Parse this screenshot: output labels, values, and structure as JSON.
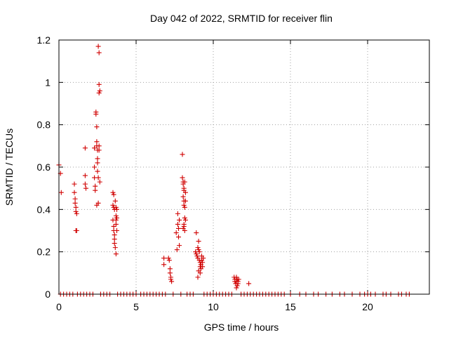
{
  "chart_data": {
    "type": "scatter",
    "title": "Day 042 of 2022, SRMTID for receiver flin",
    "xlabel": "GPS time / hours",
    "ylabel": "SRMTID / TECUs",
    "xlim": [
      0,
      24
    ],
    "ylim": [
      0,
      1.2
    ],
    "x_ticks": [
      0,
      5,
      10,
      15,
      20
    ],
    "x_tick_labels": [
      "0",
      "5",
      "10",
      "15",
      "20"
    ],
    "y_ticks": [
      0,
      0.2,
      0.4,
      0.6,
      0.8,
      1.0,
      1.2
    ],
    "y_tick_labels": [
      "0",
      "0.2",
      "0.4",
      "0.6",
      "0.8",
      "1",
      "1.2"
    ],
    "grid": true,
    "marker": "+",
    "color": "#d00000",
    "series": [
      {
        "name": "SRMTID",
        "points": [
          [
            0.0,
            0.61
          ],
          [
            0.1,
            0.57
          ],
          [
            0.15,
            0.48
          ],
          [
            1.0,
            0.52
          ],
          [
            1.0,
            0.48
          ],
          [
            1.05,
            0.45
          ],
          [
            1.05,
            0.43
          ],
          [
            1.1,
            0.41
          ],
          [
            1.1,
            0.39
          ],
          [
            1.15,
            0.38
          ],
          [
            1.1,
            0.3
          ],
          [
            1.15,
            0.3
          ],
          [
            1.7,
            0.69
          ],
          [
            1.7,
            0.56
          ],
          [
            1.7,
            0.52
          ],
          [
            1.75,
            0.5
          ],
          [
            2.3,
            0.69
          ],
          [
            2.3,
            0.6
          ],
          [
            2.3,
            0.55
          ],
          [
            2.35,
            0.51
          ],
          [
            2.35,
            0.49
          ],
          [
            2.4,
            0.86
          ],
          [
            2.4,
            0.85
          ],
          [
            2.45,
            0.79
          ],
          [
            2.45,
            0.72
          ],
          [
            2.45,
            0.7
          ],
          [
            2.5,
            0.68
          ],
          [
            2.5,
            0.64
          ],
          [
            2.5,
            0.62
          ],
          [
            2.5,
            0.58
          ],
          [
            2.55,
            0.55
          ],
          [
            2.55,
            0.43
          ],
          [
            2.45,
            0.42
          ],
          [
            2.55,
            1.17
          ],
          [
            2.6,
            1.14
          ],
          [
            2.6,
            0.99
          ],
          [
            2.6,
            0.95
          ],
          [
            2.65,
            0.96
          ],
          [
            2.6,
            0.7
          ],
          [
            2.6,
            0.68
          ],
          [
            2.65,
            0.53
          ],
          [
            3.5,
            0.48
          ],
          [
            3.55,
            0.47
          ],
          [
            3.5,
            0.42
          ],
          [
            3.55,
            0.41
          ],
          [
            3.6,
            0.4
          ],
          [
            3.5,
            0.35
          ],
          [
            3.55,
            0.32
          ],
          [
            3.55,
            0.3
          ],
          [
            3.6,
            0.28
          ],
          [
            3.6,
            0.26
          ],
          [
            3.6,
            0.24
          ],
          [
            3.65,
            0.22
          ],
          [
            3.7,
            0.19
          ],
          [
            3.65,
            0.44
          ],
          [
            3.7,
            0.41
          ],
          [
            3.7,
            0.37
          ],
          [
            3.7,
            0.35
          ],
          [
            3.7,
            0.33
          ],
          [
            3.75,
            0.36
          ],
          [
            3.75,
            0.3
          ],
          [
            3.75,
            0.4
          ],
          [
            6.8,
            0.17
          ],
          [
            6.8,
            0.14
          ],
          [
            7.1,
            0.17
          ],
          [
            7.15,
            0.16
          ],
          [
            7.2,
            0.12
          ],
          [
            7.2,
            0.1
          ],
          [
            7.25,
            0.08
          ],
          [
            7.25,
            0.07
          ],
          [
            7.3,
            0.06
          ],
          [
            7.6,
            0.29
          ],
          [
            7.65,
            0.21
          ],
          [
            7.7,
            0.38
          ],
          [
            7.7,
            0.33
          ],
          [
            7.75,
            0.31
          ],
          [
            7.75,
            0.27
          ],
          [
            7.8,
            0.35
          ],
          [
            7.8,
            0.23
          ],
          [
            8.0,
            0.66
          ],
          [
            8.0,
            0.55
          ],
          [
            8.05,
            0.53
          ],
          [
            8.05,
            0.52
          ],
          [
            8.1,
            0.5
          ],
          [
            8.1,
            0.49
          ],
          [
            8.05,
            0.46
          ],
          [
            8.1,
            0.44
          ],
          [
            8.1,
            0.42
          ],
          [
            8.15,
            0.41
          ],
          [
            8.15,
            0.36
          ],
          [
            8.2,
            0.35
          ],
          [
            8.1,
            0.33
          ],
          [
            8.1,
            0.32
          ],
          [
            8.15,
            0.3
          ],
          [
            8.05,
            0.31
          ],
          [
            8.15,
            0.53
          ],
          [
            8.2,
            0.48
          ],
          [
            8.2,
            0.44
          ],
          [
            8.9,
            0.29
          ],
          [
            8.85,
            0.2
          ],
          [
            8.9,
            0.19
          ],
          [
            8.95,
            0.18
          ],
          [
            9.0,
            0.17
          ],
          [
            9.0,
            0.22
          ],
          [
            9.05,
            0.25
          ],
          [
            9.05,
            0.21
          ],
          [
            9.1,
            0.2
          ],
          [
            9.1,
            0.16
          ],
          [
            9.15,
            0.15
          ],
          [
            9.15,
            0.13
          ],
          [
            9.2,
            0.14
          ],
          [
            9.2,
            0.12
          ],
          [
            9.25,
            0.18
          ],
          [
            9.25,
            0.16
          ],
          [
            9.05,
            0.11
          ],
          [
            9.0,
            0.08
          ],
          [
            9.15,
            0.1
          ],
          [
            9.3,
            0.15
          ],
          [
            9.3,
            0.13
          ],
          [
            9.35,
            0.17
          ],
          [
            11.35,
            0.08
          ],
          [
            11.4,
            0.07
          ],
          [
            11.4,
            0.06
          ],
          [
            11.45,
            0.05
          ],
          [
            11.5,
            0.08
          ],
          [
            11.5,
            0.06
          ],
          [
            11.55,
            0.07
          ],
          [
            11.55,
            0.04
          ],
          [
            11.6,
            0.06
          ],
          [
            11.6,
            0.05
          ],
          [
            11.65,
            0.07
          ],
          [
            11.5,
            0.03
          ],
          [
            12.3,
            0.05
          ],
          [
            0.1,
            0.0
          ],
          [
            0.3,
            0.0
          ],
          [
            0.5,
            0.0
          ],
          [
            0.7,
            0.0
          ],
          [
            0.9,
            0.0
          ],
          [
            1.2,
            0.0
          ],
          [
            1.4,
            0.0
          ],
          [
            1.6,
            0.0
          ],
          [
            1.8,
            0.0
          ],
          [
            2.0,
            0.0
          ],
          [
            2.2,
            0.0
          ],
          [
            2.7,
            0.0
          ],
          [
            2.9,
            0.0
          ],
          [
            3.1,
            0.0
          ],
          [
            3.3,
            0.0
          ],
          [
            3.8,
            0.0
          ],
          [
            4.0,
            0.0
          ],
          [
            4.2,
            0.0
          ],
          [
            4.4,
            0.0
          ],
          [
            4.6,
            0.0
          ],
          [
            4.8,
            0.0
          ],
          [
            5.0,
            0.0
          ],
          [
            5.3,
            0.0
          ],
          [
            5.5,
            0.0
          ],
          [
            5.7,
            0.0
          ],
          [
            5.9,
            0.0
          ],
          [
            6.1,
            0.0
          ],
          [
            6.3,
            0.0
          ],
          [
            6.5,
            0.0
          ],
          [
            6.7,
            0.0
          ],
          [
            6.9,
            0.0
          ],
          [
            7.4,
            0.0
          ],
          [
            7.9,
            0.0
          ],
          [
            8.3,
            0.0
          ],
          [
            8.5,
            0.0
          ],
          [
            8.7,
            0.0
          ],
          [
            9.4,
            0.0
          ],
          [
            9.6,
            0.0
          ],
          [
            9.8,
            0.0
          ],
          [
            10.0,
            0.0
          ],
          [
            10.2,
            0.0
          ],
          [
            10.4,
            0.0
          ],
          [
            10.6,
            0.0
          ],
          [
            10.8,
            0.0
          ],
          [
            11.0,
            0.0
          ],
          [
            11.2,
            0.0
          ],
          [
            11.8,
            0.0
          ],
          [
            12.0,
            0.0
          ],
          [
            12.2,
            0.0
          ],
          [
            12.4,
            0.0
          ],
          [
            12.6,
            0.0
          ],
          [
            12.8,
            0.0
          ],
          [
            13.0,
            0.0
          ],
          [
            13.2,
            0.0
          ],
          [
            13.4,
            0.0
          ],
          [
            13.6,
            0.0
          ],
          [
            13.8,
            0.0
          ],
          [
            14.0,
            0.0
          ],
          [
            14.2,
            0.0
          ],
          [
            14.4,
            0.0
          ],
          [
            14.6,
            0.0
          ],
          [
            15.0,
            0.0
          ],
          [
            15.6,
            0.0
          ],
          [
            16.0,
            0.0
          ],
          [
            16.5,
            0.0
          ],
          [
            16.8,
            0.0
          ],
          [
            17.3,
            0.0
          ],
          [
            17.7,
            0.0
          ],
          [
            18.2,
            0.0
          ],
          [
            18.5,
            0.0
          ],
          [
            19.0,
            0.0
          ],
          [
            19.5,
            0.0
          ],
          [
            19.8,
            0.0
          ],
          [
            20.0,
            0.0
          ],
          [
            20.2,
            0.0
          ],
          [
            20.5,
            0.0
          ],
          [
            21.0,
            0.0
          ],
          [
            21.2,
            0.0
          ],
          [
            21.5,
            0.0
          ],
          [
            22.0,
            0.0
          ],
          [
            22.2,
            0.0
          ],
          [
            22.5,
            0.0
          ],
          [
            22.7,
            0.0
          ]
        ]
      }
    ]
  }
}
